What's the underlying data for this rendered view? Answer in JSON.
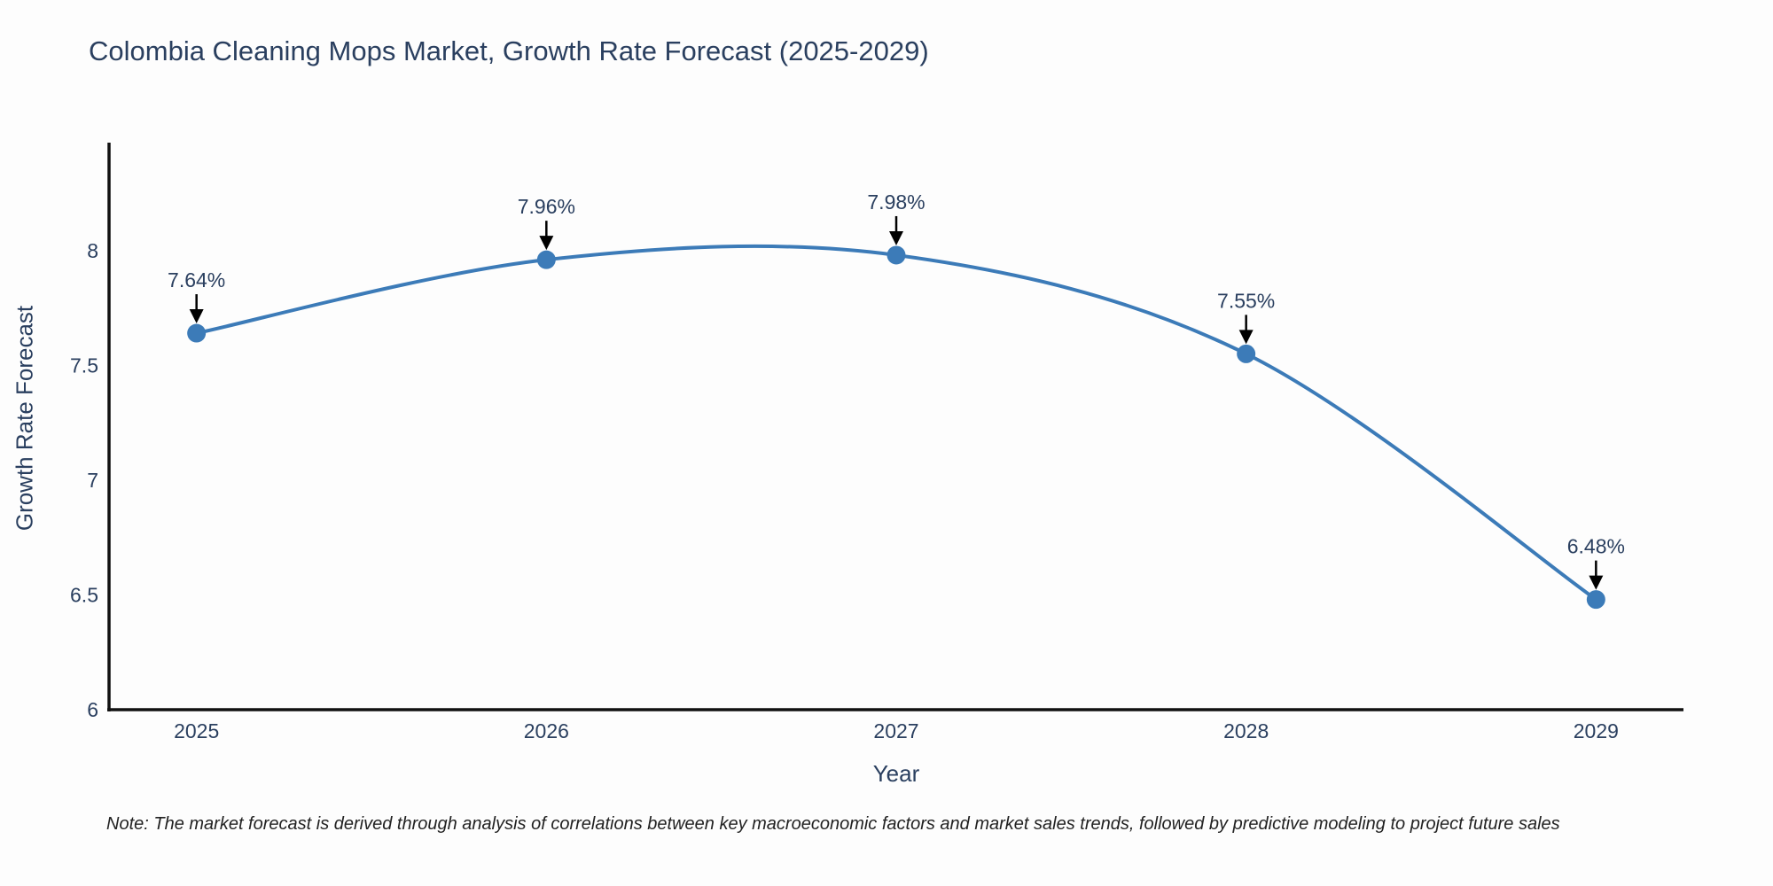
{
  "header": {
    "title": "Colombia Cleaning Mops Market, Growth Rate Forecast (2025-2029)"
  },
  "footnote": {
    "text": "Note: The market forecast is derived through analysis of correlations between key macroeconomic factors and market sales trends, followed by predictive modeling to project future sales"
  },
  "chart_data": {
    "type": "line",
    "title": "Colombia Cleaning Mops Market, Growth Rate Forecast (2025-2029)",
    "xlabel": "Year",
    "ylabel": "Growth Rate Forecast",
    "x": [
      2025,
      2026,
      2027,
      2028,
      2029
    ],
    "values": [
      7.64,
      7.96,
      7.98,
      7.55,
      6.48
    ],
    "point_labels": [
      "7.64%",
      "7.96%",
      "7.98%",
      "7.55%",
      "6.48%"
    ],
    "xtick_labels": [
      "2025",
      "2026",
      "2027",
      "2028",
      "2029"
    ],
    "yticks": [
      6,
      6.5,
      7,
      7.5,
      8
    ],
    "ytick_labels": [
      "6",
      "6.5",
      "7",
      "7.5",
      "8"
    ],
    "xlim": [
      2024.75,
      2029.25
    ],
    "ylim": [
      6,
      8.47
    ],
    "grid": false,
    "curve": "spline",
    "legend": "none",
    "colors": {
      "line": "#3c7bb8",
      "marker": "#3c7bb8",
      "axis_line": "#111111",
      "tick_text": "#2a3f5f",
      "annotation_text": "#2a3f5f",
      "annotation_arrow": "#000000"
    }
  }
}
